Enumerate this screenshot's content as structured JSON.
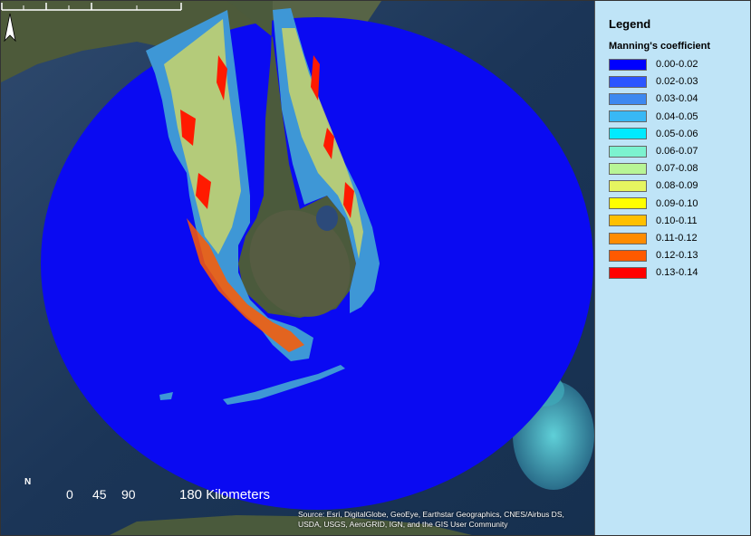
{
  "legend": {
    "title": "Legend",
    "subtitle": "Manning's coefficient",
    "items": [
      {
        "label": "0.00-0.02",
        "color": "#0000ff"
      },
      {
        "label": "0.02-0.03",
        "color": "#2b55ff"
      },
      {
        "label": "0.03-0.04",
        "color": "#3d88f0"
      },
      {
        "label": "0.04-0.05",
        "color": "#38b8f5"
      },
      {
        "label": "0.05-0.06",
        "color": "#00eaff"
      },
      {
        "label": "0.06-0.07",
        "color": "#7cf2cf"
      },
      {
        "label": "0.07-0.08",
        "color": "#b8f596"
      },
      {
        "label": "0.08-0.09",
        "color": "#e6f560"
      },
      {
        "label": "0.09-0.10",
        "color": "#ffff00"
      },
      {
        "label": "0.10-0.11",
        "color": "#ffc000"
      },
      {
        "label": "0.11-0.12",
        "color": "#ff8c00"
      },
      {
        "label": "0.12-0.13",
        "color": "#ff5a00"
      },
      {
        "label": "0.13-0.14",
        "color": "#ff0000"
      }
    ]
  },
  "north_arrow": {
    "letter": "N"
  },
  "scale_bar": {
    "ticks": [
      "0",
      "45",
      "90",
      "180"
    ],
    "units": "Kilometers"
  },
  "credits": "Source: Esri, DigitalGlobe, GeoEye, Earthstar Geographics, CNES/Airbus DS, USDA, USGS, AeroGRID, IGN, and the GIS User Community"
}
